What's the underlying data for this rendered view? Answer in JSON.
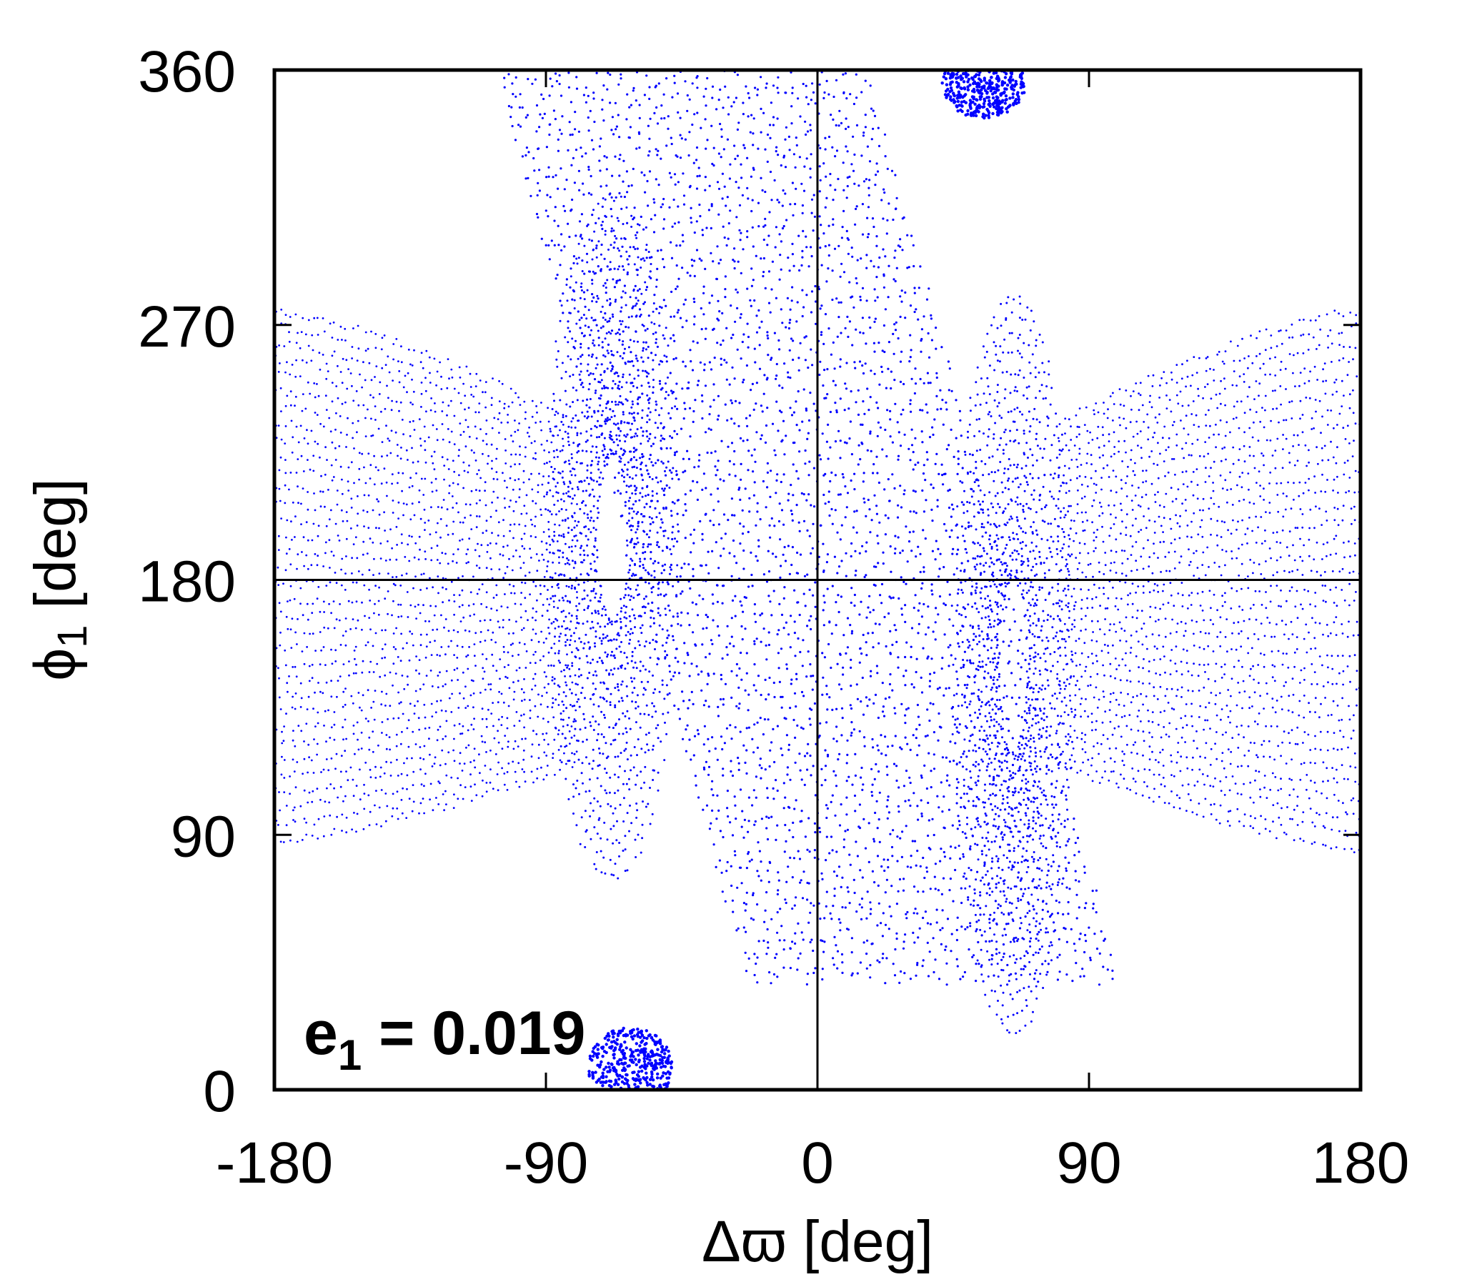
{
  "chart_data": {
    "type": "scatter",
    "title": "",
    "xlabel": "Δϖ [deg]",
    "ylabel_main": "ϕ",
    "ylabel_sub": "1",
    "ylabel_unit": " [deg]",
    "xlim": [
      -180,
      180
    ],
    "ylim": [
      0,
      360
    ],
    "xticks": [
      -180,
      -90,
      0,
      90,
      180
    ],
    "yticks": [
      0,
      90,
      180,
      270,
      360
    ],
    "grid": false,
    "reference_lines": {
      "x": 0,
      "y": 180
    },
    "annotation": {
      "main": "e",
      "sub": "1",
      "rest": " = 0.019"
    },
    "series": [
      {
        "color": "#0000ff",
        "marker": "dot",
        "description_note": "dense phase-space scatter of trajectories",
        "regions": [
          {
            "kind": "central_band",
            "x_at_top": -48,
            "x_at_bottom": 36,
            "y_top": 360,
            "y_bottom": 40
          },
          {
            "kind": "left_lobe",
            "cx": -68,
            "cy": 195,
            "rx": 22,
            "ry": 120
          },
          {
            "kind": "right_lobe",
            "cx": 65,
            "cy": 150,
            "rx": 20,
            "ry": 130
          },
          {
            "kind": "left_fan",
            "x_from": -180,
            "x_to": -80,
            "y_from": 88,
            "y_to": 275
          },
          {
            "kind": "right_fan",
            "x_from": 80,
            "x_to": 180,
            "y_from": 85,
            "y_to": 275
          },
          {
            "kind": "top_island",
            "cx": 55,
            "cy": 355,
            "rx": 14,
            "ry": 12
          },
          {
            "kind": "bottom_island",
            "cx": -62,
            "cy": 8,
            "rx": 14,
            "ry": 14
          }
        ]
      }
    ]
  }
}
